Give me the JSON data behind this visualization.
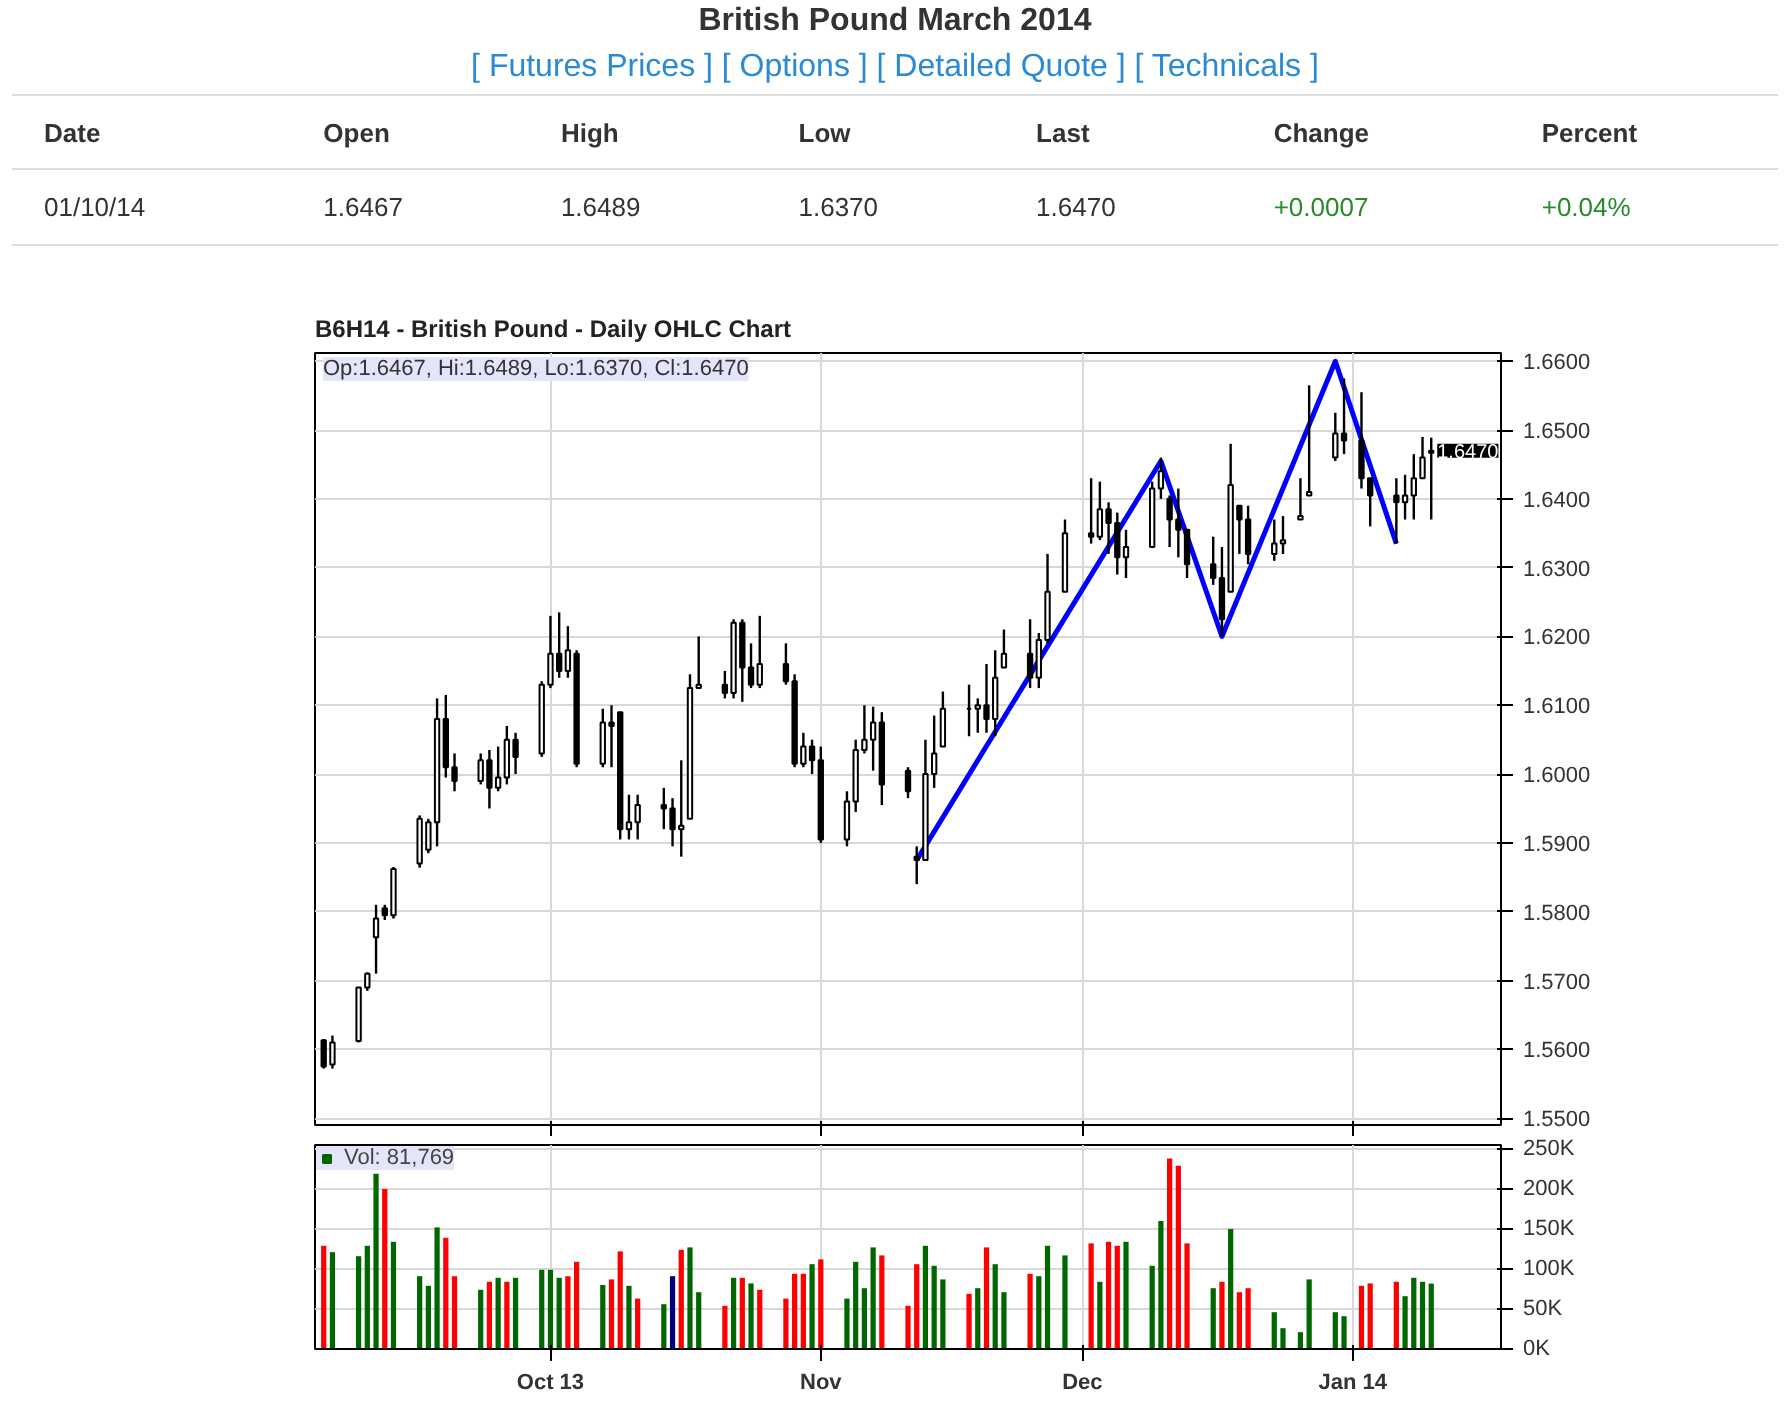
{
  "chart_data": [
    {
      "type": "other",
      "title": "British Pound March 2014",
      "subtitle": "[ Futures Prices ] [ Options ] [ Detailed Quote ] [ Technicals ]",
      "annotations": [
        "Date",
        "Open",
        "High",
        "Low",
        "Last",
        "Change",
        "Percent",
        "01/10/14",
        "1.6467",
        "1.6489",
        "1.6370",
        "1.6470",
        "+0.0007",
        "+0.04%"
      ]
    },
    {
      "type": "candlestick",
      "title": "B6H14 - British Pound - Daily OHLC Chart",
      "x": [
        "2013-09-05",
        "2013-09-06",
        "2013-09-09",
        "2013-09-10",
        "2013-09-11",
        "2013-09-12",
        "2013-09-13",
        "2013-09-16",
        "2013-09-17",
        "2013-09-18",
        "2013-09-19",
        "2013-09-20",
        "2013-09-23",
        "2013-09-24",
        "2013-09-25",
        "2013-09-26",
        "2013-09-27",
        "2013-09-30",
        "2013-10-01",
        "2013-10-02",
        "2013-10-03",
        "2013-10-04",
        "2013-10-07",
        "2013-10-08",
        "2013-10-09",
        "2013-10-10",
        "2013-10-11",
        "2013-10-14",
        "2013-10-15",
        "2013-10-16",
        "2013-10-17",
        "2013-10-18",
        "2013-10-21",
        "2013-10-22",
        "2013-10-23",
        "2013-10-24",
        "2013-10-25",
        "2013-10-28",
        "2013-10-29",
        "2013-10-30",
        "2013-10-31",
        "2013-11-01",
        "2013-11-04",
        "2013-11-05",
        "2013-11-06",
        "2013-11-07",
        "2013-11-08",
        "2013-11-11",
        "2013-11-12",
        "2013-11-13",
        "2013-11-14",
        "2013-11-15",
        "2013-11-18",
        "2013-11-19",
        "2013-11-20",
        "2013-11-21",
        "2013-11-22",
        "2013-11-25",
        "2013-11-26",
        "2013-11-27",
        "2013-11-29",
        "2013-12-02",
        "2013-12-03",
        "2013-12-04",
        "2013-12-05",
        "2013-12-06",
        "2013-12-09",
        "2013-12-10",
        "2013-12-11",
        "2013-12-12",
        "2013-12-13",
        "2013-12-16",
        "2013-12-17",
        "2013-12-18",
        "2013-12-19",
        "2013-12-20",
        "2013-12-23",
        "2013-12-24",
        "2013-12-26",
        "2013-12-27",
        "2013-12-30",
        "2013-12-31",
        "2014-01-02",
        "2014-01-03",
        "2014-01-06",
        "2014-01-07",
        "2014-01-08",
        "2014-01-09",
        "2014-01-10"
      ],
      "ohlc": [
        [
          1.5613,
          1.5615,
          1.5572,
          1.5575
        ],
        [
          1.5578,
          1.562,
          1.5572,
          1.561
        ],
        [
          1.5612,
          1.569,
          1.561,
          1.569
        ],
        [
          1.569,
          1.5712,
          1.5685,
          1.571
        ],
        [
          1.5763,
          1.581,
          1.571,
          1.579
        ],
        [
          1.5805,
          1.581,
          1.5788,
          1.5795
        ],
        [
          1.5795,
          1.5865,
          1.579,
          1.5862
        ],
        [
          1.587,
          1.594,
          1.5864,
          1.5935
        ],
        [
          1.589,
          1.5935,
          1.5885,
          1.593
        ],
        [
          1.593,
          1.611,
          1.5895,
          1.608
        ],
        [
          1.608,
          1.6115,
          1.5995,
          1.601
        ],
        [
          1.601,
          1.603,
          1.5975,
          1.599
        ],
        [
          1.599,
          1.603,
          1.5985,
          1.602
        ],
        [
          1.602,
          1.6035,
          1.595,
          1.598
        ],
        [
          1.598,
          1.604,
          1.5975,
          1.5995
        ],
        [
          1.5995,
          1.607,
          1.5985,
          1.605
        ],
        [
          1.605,
          1.606,
          1.6,
          1.6025
        ],
        [
          1.603,
          1.6135,
          1.6025,
          1.613
        ],
        [
          1.613,
          1.623,
          1.6125,
          1.6175
        ],
        [
          1.6175,
          1.6235,
          1.614,
          1.615
        ],
        [
          1.615,
          1.6215,
          1.614,
          1.618
        ],
        [
          1.6175,
          1.618,
          1.601,
          1.6015
        ],
        [
          1.6015,
          1.6095,
          1.601,
          1.6075
        ],
        [
          1.6075,
          1.61,
          1.601,
          1.607
        ],
        [
          1.609,
          1.609,
          1.5905,
          1.592
        ],
        [
          1.592,
          1.597,
          1.5905,
          1.593
        ],
        [
          1.593,
          1.597,
          1.5905,
          1.5955
        ],
        [
          1.5955,
          1.598,
          1.592,
          1.595
        ],
        [
          1.595,
          1.5965,
          1.5895,
          1.592
        ],
        [
          1.592,
          1.602,
          1.588,
          1.5925
        ],
        [
          1.5935,
          1.6145,
          1.5935,
          1.6125
        ],
        [
          1.6125,
          1.62,
          1.6125,
          1.613
        ],
        [
          1.613,
          1.615,
          1.611,
          1.6118
        ],
        [
          1.6118,
          1.6225,
          1.611,
          1.622
        ],
        [
          1.622,
          1.6225,
          1.6105,
          1.6155
        ],
        [
          1.6155,
          1.619,
          1.6125,
          1.613
        ],
        [
          1.613,
          1.623,
          1.6125,
          1.616
        ],
        [
          1.616,
          1.619,
          1.613,
          1.6135
        ],
        [
          1.6135,
          1.6145,
          1.601,
          1.6015
        ],
        [
          1.6015,
          1.606,
          1.601,
          1.604
        ],
        [
          1.604,
          1.605,
          1.6,
          1.602
        ],
        [
          1.602,
          1.604,
          1.59,
          1.5905
        ],
        [
          1.5905,
          1.5975,
          1.5895,
          1.596
        ],
        [
          1.596,
          1.605,
          1.5945,
          1.6035
        ],
        [
          1.6035,
          1.61,
          1.603,
          1.605
        ],
        [
          1.605,
          1.6098,
          1.6005,
          1.6075
        ],
        [
          1.6075,
          1.609,
          1.5955,
          1.5985
        ],
        [
          1.6005,
          1.601,
          1.5965,
          1.5975
        ],
        [
          1.588,
          1.5895,
          1.584,
          1.5875
        ],
        [
          1.5875,
          1.605,
          1.5875,
          1.6
        ],
        [
          1.6,
          1.6085,
          1.598,
          1.603
        ],
        [
          1.604,
          1.612,
          1.604,
          1.6095
        ],
        [
          1.6095,
          1.613,
          1.6055,
          1.6095
        ],
        [
          1.6095,
          1.611,
          1.606,
          1.61
        ],
        [
          1.61,
          1.616,
          1.606,
          1.608
        ],
        [
          1.608,
          1.618,
          1.6055,
          1.614
        ],
        [
          1.6155,
          1.621,
          1.6155,
          1.6175
        ],
        [
          1.6175,
          1.6225,
          1.6125,
          1.614
        ],
        [
          1.614,
          1.6205,
          1.6125,
          1.6195
        ],
        [
          1.6195,
          1.632,
          1.619,
          1.6265
        ],
        [
          1.6265,
          1.637,
          1.6265,
          1.635
        ],
        [
          1.635,
          1.643,
          1.6335,
          1.6345
        ],
        [
          1.6345,
          1.6425,
          1.634,
          1.6385
        ],
        [
          1.6385,
          1.6395,
          1.632,
          1.6365
        ],
        [
          1.6365,
          1.638,
          1.629,
          1.6315
        ],
        [
          1.6315,
          1.6355,
          1.6285,
          1.633
        ],
        [
          1.633,
          1.6425,
          1.633,
          1.6415
        ],
        [
          1.6415,
          1.646,
          1.64,
          1.644
        ],
        [
          1.64,
          1.6405,
          1.633,
          1.637
        ],
        [
          1.637,
          1.6415,
          1.6315,
          1.6355
        ],
        [
          1.6355,
          1.6355,
          1.6285,
          1.6305
        ],
        [
          1.6305,
          1.6345,
          1.6275,
          1.6285
        ],
        [
          1.6285,
          1.633,
          1.62,
          1.6225
        ],
        [
          1.6265,
          1.648,
          1.6265,
          1.642
        ],
        [
          1.639,
          1.639,
          1.632,
          1.637
        ],
        [
          1.637,
          1.639,
          1.6305,
          1.632
        ],
        [
          1.632,
          1.637,
          1.631,
          1.6335
        ],
        [
          1.6335,
          1.6375,
          1.632,
          1.634
        ],
        [
          1.637,
          1.643,
          1.637,
          1.6375
        ],
        [
          1.6405,
          1.6565,
          1.6405,
          1.641
        ],
        [
          1.646,
          1.6525,
          1.6455,
          1.6495
        ],
        [
          1.6495,
          1.6575,
          1.6465,
          1.6485
        ],
        [
          1.6485,
          1.6555,
          1.6415,
          1.643
        ],
        [
          1.643,
          1.643,
          1.636,
          1.6405
        ],
        [
          1.6405,
          1.643,
          1.6335,
          1.6395
        ],
        [
          1.6395,
          1.6435,
          1.637,
          1.6405
        ],
        [
          1.6405,
          1.6465,
          1.637,
          1.643
        ],
        [
          1.643,
          1.649,
          1.643,
          1.646
        ],
        [
          1.6467,
          1.6489,
          1.637,
          1.647
        ]
      ],
      "series": [
        {
          "type": "line",
          "color": "#0000ff",
          "x": [
            "2013-11-12",
            "2013-12-10",
            "2013-12-17",
            "2013-12-30",
            "2014-01-06"
          ],
          "values": [
            1.5875,
            1.6455,
            1.62,
            1.66,
            1.6335
          ]
        }
      ],
      "annotations": [
        "Op:1.6467, Hi:1.6489, Lo:1.6370, Cl:1.6470",
        {
          "text": "1.6470",
          "x": "2014-01-10",
          "y": 1.647
        }
      ],
      "xlim": [
        "2013-09-04",
        "2014-01-18"
      ],
      "xticks": [
        {
          "value": "2013-10-01",
          "label": null
        },
        {
          "value": "2013-11-01",
          "label": null
        },
        {
          "value": "2013-12-01",
          "label": null
        },
        {
          "value": "2014-01-01",
          "label": null
        }
      ],
      "ylim": [
        1.549,
        1.6612
      ],
      "yticks": [
        {
          "value": 1.55,
          "label": "1.5500"
        },
        {
          "value": 1.56,
          "label": "1.5600"
        },
        {
          "value": 1.57,
          "label": "1.5700"
        },
        {
          "value": 1.58,
          "label": "1.5800"
        },
        {
          "value": 1.59,
          "label": "1.5900"
        },
        {
          "value": 1.6,
          "label": "1.6000"
        },
        {
          "value": 1.61,
          "label": "1.6100"
        },
        {
          "value": 1.62,
          "label": "1.6200"
        },
        {
          "value": 1.63,
          "label": "1.6300"
        },
        {
          "value": 1.64,
          "label": "1.6400"
        },
        {
          "value": 1.65,
          "label": "1.6500"
        },
        {
          "value": 1.66,
          "label": "1.6600"
        }
      ],
      "grid": true,
      "tick_labels": "y"
    },
    {
      "type": "bar",
      "x": [
        "2013-09-05",
        "2013-09-06",
        "2013-09-09",
        "2013-09-10",
        "2013-09-11",
        "2013-09-12",
        "2013-09-13",
        "2013-09-16",
        "2013-09-17",
        "2013-09-18",
        "2013-09-19",
        "2013-09-20",
        "2013-09-23",
        "2013-09-24",
        "2013-09-25",
        "2013-09-26",
        "2013-09-27",
        "2013-09-30",
        "2013-10-01",
        "2013-10-02",
        "2013-10-03",
        "2013-10-04",
        "2013-10-07",
        "2013-10-08",
        "2013-10-09",
        "2013-10-10",
        "2013-10-11",
        "2013-10-14",
        "2013-10-15",
        "2013-10-16",
        "2013-10-17",
        "2013-10-18",
        "2013-10-21",
        "2013-10-22",
        "2013-10-23",
        "2013-10-24",
        "2013-10-25",
        "2013-10-28",
        "2013-10-29",
        "2013-10-30",
        "2013-10-31",
        "2013-11-01",
        "2013-11-04",
        "2013-11-05",
        "2013-11-06",
        "2013-11-07",
        "2013-11-08",
        "2013-11-11",
        "2013-11-12",
        "2013-11-13",
        "2013-11-14",
        "2013-11-15",
        "2013-11-18",
        "2013-11-19",
        "2013-11-20",
        "2013-11-21",
        "2013-11-22",
        "2013-11-25",
        "2013-11-26",
        "2013-11-27",
        "2013-11-29",
        "2013-12-02",
        "2013-12-03",
        "2013-12-04",
        "2013-12-05",
        "2013-12-06",
        "2013-12-09",
        "2013-12-10",
        "2013-12-11",
        "2013-12-12",
        "2013-12-13",
        "2013-12-16",
        "2013-12-17",
        "2013-12-18",
        "2013-12-19",
        "2013-12-20",
        "2013-12-23",
        "2013-12-24",
        "2013-12-26",
        "2013-12-27",
        "2013-12-30",
        "2013-12-31",
        "2014-01-02",
        "2014-01-03",
        "2014-01-06",
        "2014-01-07",
        "2014-01-08",
        "2014-01-09",
        "2014-01-10"
      ],
      "series": [
        {
          "name": "Vol: 81,769",
          "values": [
            129000,
            121000,
            116000,
            129000,
            219000,
            200000,
            134000,
            91000,
            79000,
            152000,
            139000,
            91000,
            74000,
            84000,
            89000,
            84000,
            89000,
            99000,
            99000,
            89000,
            91000,
            109000,
            80000,
            87000,
            122000,
            79000,
            63000,
            56000,
            91000,
            124000,
            127000,
            71000,
            54000,
            89000,
            89000,
            82000,
            74000,
            63000,
            94000,
            94000,
            106000,
            112000,
            63000,
            109000,
            76000,
            127000,
            117000,
            54000,
            106000,
            129000,
            104000,
            87000,
            69000,
            76000,
            127000,
            106000,
            71000,
            94000,
            91000,
            129000,
            117000,
            132000,
            84000,
            134000,
            129000,
            134000,
            104000,
            160000,
            238000,
            229000,
            132000,
            76000,
            84000,
            150000,
            71000,
            76000,
            46000,
            26000,
            21000,
            87000,
            46000,
            41000,
            79000,
            82000,
            84000,
            66000,
            89000,
            84000,
            81769
          ],
          "colors": [
            "#ff0000",
            "#006600",
            "#006600",
            "#006600",
            "#006600",
            "#ff0000",
            "#006600",
            "#006600",
            "#006600",
            "#006600",
            "#ff0000",
            "#ff0000",
            "#006600",
            "#ff0000",
            "#006600",
            "#ff0000",
            "#006600",
            "#006600",
            "#006600",
            "#006600",
            "#ff0000",
            "#ff0000",
            "#006600",
            "#ff0000",
            "#ff0000",
            "#006600",
            "#ff0000",
            "#006600",
            "#000080",
            "#ff0000",
            "#006600",
            "#006600",
            "#ff0000",
            "#006600",
            "#ff0000",
            "#006600",
            "#ff0000",
            "#ff0000",
            "#ff0000",
            "#ff0000",
            "#006600",
            "#ff0000",
            "#006600",
            "#006600",
            "#006600",
            "#006600",
            "#ff0000",
            "#ff0000",
            "#ff0000",
            "#006600",
            "#006600",
            "#006600",
            "#ff0000",
            "#006600",
            "#ff0000",
            "#006600",
            "#006600",
            "#ff0000",
            "#006600",
            "#006600",
            "#006600",
            "#ff0000",
            "#006600",
            "#ff0000",
            "#ff0000",
            "#006600",
            "#006600",
            "#006600",
            "#ff0000",
            "#ff0000",
            "#ff0000",
            "#006600",
            "#ff0000",
            "#006600",
            "#ff0000",
            "#ff0000",
            "#006600",
            "#006600",
            "#006600",
            "#006600",
            "#006600",
            "#006600",
            "#ff0000",
            "#ff0000",
            "#ff0000",
            "#006600",
            "#006600",
            "#006600",
            "#006600"
          ]
        }
      ],
      "xlim": [
        "2013-09-04",
        "2014-01-18"
      ],
      "xticks": [
        {
          "value": "2013-10-01",
          "label": "Oct 13"
        },
        {
          "value": "2013-11-01",
          "label": "Nov"
        },
        {
          "value": "2013-12-01",
          "label": "Dec"
        },
        {
          "value": "2014-01-01",
          "label": "Jan 14"
        }
      ],
      "ylim": [
        0,
        255000
      ],
      "yticks": [
        {
          "value": 0,
          "label": "0K"
        },
        {
          "value": 50000,
          "label": "50K"
        },
        {
          "value": 100000,
          "label": "100K"
        },
        {
          "value": 150000,
          "label": "150K"
        },
        {
          "value": 200000,
          "label": "200K"
        },
        {
          "value": 250000,
          "label": "250K"
        }
      ],
      "grid": true,
      "legend": "top left"
    }
  ]
}
